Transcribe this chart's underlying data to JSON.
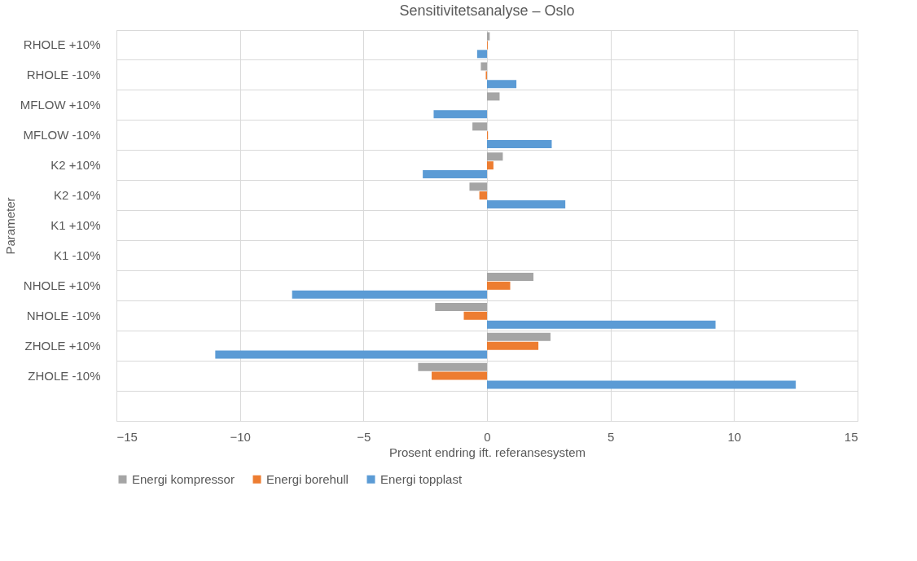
{
  "chart_data": {
    "type": "bar",
    "orientation": "horizontal",
    "title": "Sensitivitetsanalyse – Oslo",
    "xlabel": "Prosent endring ift. referansesystem",
    "ylabel": "Parameter",
    "categories": [
      "RHOLE +10%",
      "RHOLE -10%",
      "MFLOW +10%",
      "MFLOW -10%",
      "K2 +10%",
      "K2 -10%",
      "K1 +10%",
      "K1 -10%",
      "NHOLE +10%",
      "NHOLE -10%",
      "ZHOLE +10%",
      "ZHOLE -10%",
      null
    ],
    "series": [
      {
        "name": "Energi kompressor",
        "color": "#a5a5a5",
        "values": [
          0.11,
          -0.25,
          0.51,
          -0.59,
          0.64,
          -0.71,
          0,
          0,
          1.88,
          -2.1,
          2.57,
          -2.79,
          null
        ]
      },
      {
        "name": "Energi borehull",
        "color": "#ed7d31",
        "values": [
          0.03,
          -0.05,
          0,
          0.04,
          0.26,
          -0.31,
          0,
          0,
          0.94,
          -0.94,
          2.08,
          -2.24,
          null
        ]
      },
      {
        "name": "Energi topplast",
        "color": "#5b9bd5",
        "values": [
          -0.4,
          1.19,
          -2.16,
          2.62,
          -2.6,
          3.17,
          0,
          0,
          -7.89,
          9.25,
          -11.0,
          12.5,
          null
        ]
      }
    ],
    "xlim": [
      -15,
      15
    ],
    "xticks": [
      -15,
      -10,
      -5,
      0,
      5,
      10,
      15
    ],
    "grid": true,
    "legend": "bottom"
  }
}
